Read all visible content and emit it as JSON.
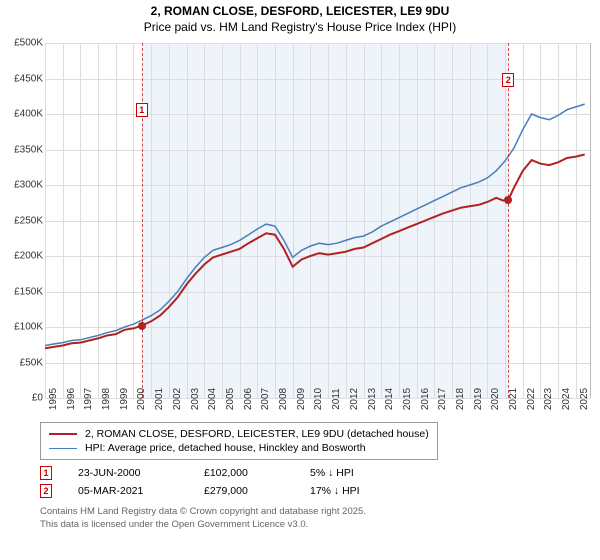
{
  "title": {
    "address": "2, ROMAN CLOSE, DESFORD, LEICESTER, LE9 9DU",
    "subtitle": "Price paid vs. HM Land Registry's House Price Index (HPI)"
  },
  "chart": {
    "type": "line",
    "background_color": "#ffffff",
    "shade_color": "#eef4fa",
    "grid_color": "#dddddd",
    "border_color": "#bbbbbb",
    "ylim": [
      0,
      500000
    ],
    "ytick_step": 50000,
    "yticks": [
      "£0",
      "£50K",
      "£100K",
      "£150K",
      "£200K",
      "£250K",
      "£300K",
      "£350K",
      "£400K",
      "£450K",
      "£500K"
    ],
    "xlim": [
      1995,
      2025.8
    ],
    "xticks": [
      1995,
      1996,
      1997,
      1998,
      1999,
      2000,
      2001,
      2002,
      2003,
      2004,
      2005,
      2006,
      2007,
      2008,
      2009,
      2010,
      2011,
      2012,
      2013,
      2014,
      2015,
      2016,
      2017,
      2018,
      2019,
      2020,
      2021,
      2022,
      2023,
      2024,
      2025
    ],
    "shade_range": [
      2000.47,
      2021.18
    ],
    "series": [
      {
        "name": "property",
        "label": "2, ROMAN CLOSE, DESFORD, LEICESTER, LE9 9DU (detached house)",
        "color": "#b22222",
        "line_width": 2,
        "data": [
          [
            1995,
            70000
          ],
          [
            1995.5,
            72000
          ],
          [
            1996,
            74000
          ],
          [
            1996.5,
            77000
          ],
          [
            1997,
            78000
          ],
          [
            1997.5,
            81000
          ],
          [
            1998,
            84000
          ],
          [
            1998.5,
            88000
          ],
          [
            1999,
            90000
          ],
          [
            1999.5,
            96000
          ],
          [
            2000,
            98000
          ],
          [
            2000.47,
            102000
          ],
          [
            2001,
            108000
          ],
          [
            2001.5,
            116000
          ],
          [
            2002,
            128000
          ],
          [
            2002.5,
            142000
          ],
          [
            2003,
            160000
          ],
          [
            2003.5,
            175000
          ],
          [
            2004,
            188000
          ],
          [
            2004.5,
            198000
          ],
          [
            2005,
            202000
          ],
          [
            2005.5,
            206000
          ],
          [
            2006,
            210000
          ],
          [
            2006.5,
            218000
          ],
          [
            2007,
            225000
          ],
          [
            2007.5,
            232000
          ],
          [
            2008,
            230000
          ],
          [
            2008.5,
            210000
          ],
          [
            2009,
            185000
          ],
          [
            2009.5,
            195000
          ],
          [
            2010,
            200000
          ],
          [
            2010.5,
            204000
          ],
          [
            2011,
            202000
          ],
          [
            2011.5,
            204000
          ],
          [
            2012,
            206000
          ],
          [
            2012.5,
            210000
          ],
          [
            2013,
            212000
          ],
          [
            2013.5,
            218000
          ],
          [
            2014,
            224000
          ],
          [
            2014.5,
            230000
          ],
          [
            2015,
            235000
          ],
          [
            2015.5,
            240000
          ],
          [
            2016,
            245000
          ],
          [
            2016.5,
            250000
          ],
          [
            2017,
            255000
          ],
          [
            2017.5,
            260000
          ],
          [
            2018,
            264000
          ],
          [
            2018.5,
            268000
          ],
          [
            2019,
            270000
          ],
          [
            2019.5,
            272000
          ],
          [
            2020,
            276000
          ],
          [
            2020.5,
            282000
          ],
          [
            2020.9,
            278000
          ],
          [
            2021.18,
            279000
          ],
          [
            2021.5,
            296000
          ],
          [
            2022,
            320000
          ],
          [
            2022.5,
            335000
          ],
          [
            2023,
            330000
          ],
          [
            2023.5,
            328000
          ],
          [
            2024,
            332000
          ],
          [
            2024.5,
            338000
          ],
          [
            2025,
            340000
          ],
          [
            2025.5,
            343000
          ]
        ]
      },
      {
        "name": "hpi",
        "label": "HPI: Average price, detached house, Hinckley and Bosworth",
        "color": "#4a7ebb",
        "line_width": 1.5,
        "data": [
          [
            1995,
            74000
          ],
          [
            1995.5,
            76000
          ],
          [
            1996,
            78000
          ],
          [
            1996.5,
            81000
          ],
          [
            1997,
            82000
          ],
          [
            1997.5,
            85000
          ],
          [
            1998,
            88000
          ],
          [
            1998.5,
            92000
          ],
          [
            1999,
            95000
          ],
          [
            1999.5,
            100000
          ],
          [
            2000,
            104000
          ],
          [
            2000.5,
            110000
          ],
          [
            2001,
            116000
          ],
          [
            2001.5,
            124000
          ],
          [
            2002,
            136000
          ],
          [
            2002.5,
            150000
          ],
          [
            2003,
            168000
          ],
          [
            2003.5,
            184000
          ],
          [
            2004,
            198000
          ],
          [
            2004.5,
            208000
          ],
          [
            2005,
            212000
          ],
          [
            2005.5,
            216000
          ],
          [
            2006,
            222000
          ],
          [
            2006.5,
            230000
          ],
          [
            2007,
            238000
          ],
          [
            2007.5,
            245000
          ],
          [
            2008,
            242000
          ],
          [
            2008.5,
            222000
          ],
          [
            2009,
            198000
          ],
          [
            2009.5,
            208000
          ],
          [
            2010,
            214000
          ],
          [
            2010.5,
            218000
          ],
          [
            2011,
            216000
          ],
          [
            2011.5,
            218000
          ],
          [
            2012,
            222000
          ],
          [
            2012.5,
            226000
          ],
          [
            2013,
            228000
          ],
          [
            2013.5,
            234000
          ],
          [
            2014,
            242000
          ],
          [
            2014.5,
            248000
          ],
          [
            2015,
            254000
          ],
          [
            2015.5,
            260000
          ],
          [
            2016,
            266000
          ],
          [
            2016.5,
            272000
          ],
          [
            2017,
            278000
          ],
          [
            2017.5,
            284000
          ],
          [
            2018,
            290000
          ],
          [
            2018.5,
            296000
          ],
          [
            2019,
            300000
          ],
          [
            2019.5,
            304000
          ],
          [
            2020,
            310000
          ],
          [
            2020.5,
            320000
          ],
          [
            2021,
            334000
          ],
          [
            2021.5,
            352000
          ],
          [
            2022,
            378000
          ],
          [
            2022.5,
            400000
          ],
          [
            2023,
            395000
          ],
          [
            2023.5,
            392000
          ],
          [
            2024,
            398000
          ],
          [
            2024.5,
            406000
          ],
          [
            2025,
            410000
          ],
          [
            2025.5,
            414000
          ]
        ]
      }
    ],
    "markers": [
      {
        "n": "1",
        "x": 2000.47,
        "y": 102000
      },
      {
        "n": "2",
        "x": 2021.18,
        "y": 279000
      }
    ]
  },
  "legend": {
    "items": [
      {
        "color": "#b22222",
        "width": 2,
        "label": "2, ROMAN CLOSE, DESFORD, LEICESTER, LE9 9DU (detached house)"
      },
      {
        "color": "#4a7ebb",
        "width": 1.5,
        "label": "HPI: Average price, detached house, Hinckley and Bosworth"
      }
    ]
  },
  "sales": [
    {
      "n": "1",
      "date": "23-JUN-2000",
      "price": "£102,000",
      "note": "5% ↓ HPI"
    },
    {
      "n": "2",
      "date": "05-MAR-2021",
      "price": "£279,000",
      "note": "17% ↓ HPI"
    }
  ],
  "footer": {
    "line1": "Contains HM Land Registry data © Crown copyright and database right 2025.",
    "line2": "This data is licensed under the Open Government Licence v3.0."
  }
}
